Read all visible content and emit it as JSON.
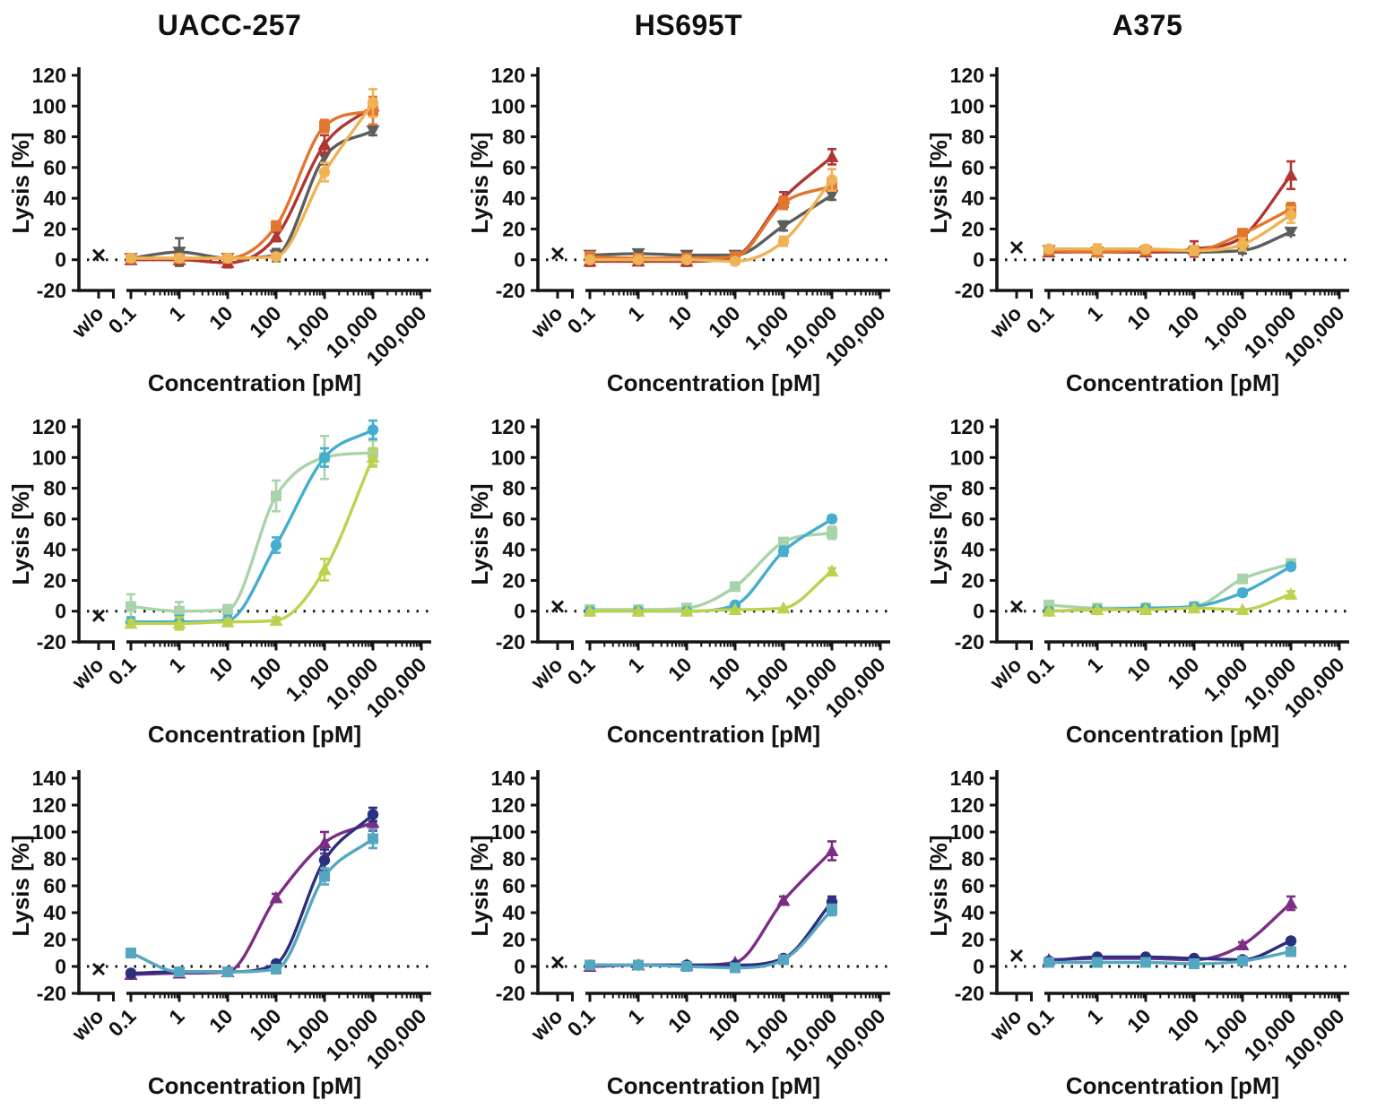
{
  "titles": [
    "UACC-257",
    "HS695T",
    "A375"
  ],
  "axis": {
    "ylabel": "Lysis [%]",
    "xlabel": "Concentration [pM]",
    "scale": "log",
    "wo_label": "w/o",
    "x_values": [
      0.1,
      1,
      10,
      100,
      1000,
      10000
    ],
    "x_tick_labels": [
      "0.1",
      "1",
      "10",
      "100",
      "1,000",
      "10,000",
      "100,000"
    ],
    "zero_line": "dotted"
  },
  "colors": {
    "orange": "#E1762F",
    "dark_red": "#B13632",
    "yellow": "#EFB254",
    "gray": "#5B5E5A",
    "light_green": "#A9D3A8",
    "blue": "#45ADCE",
    "lime": "#BCD24F",
    "purple": "#7C2E85",
    "navy": "#2A2F7E",
    "teal": "#55A7BF",
    "axis": "#151515"
  },
  "chart_data": [
    {
      "id": "row1-uacc257",
      "type": "line",
      "cell_line": "UACC-257",
      "ylim": [
        -20,
        120
      ],
      "ytick_step": 20,
      "wo_marker_y": 3,
      "series": [
        {
          "name": "gray-triangle-down",
          "marker": "triangle-down",
          "color": "#5B5E5A",
          "values": [
            1,
            5,
            1,
            3,
            67,
            84
          ],
          "errors": [
            2,
            9,
            2,
            4,
            5,
            3
          ]
        },
        {
          "name": "dark-red-triangle-up",
          "marker": "triangle-up",
          "color": "#B13632",
          "values": [
            0,
            0,
            -2,
            15,
            75,
            100
          ],
          "errors": [
            2,
            3,
            3,
            3,
            6,
            4
          ]
        },
        {
          "name": "orange-square",
          "marker": "square",
          "color": "#E1762F",
          "values": [
            1,
            1,
            1,
            22,
            87,
            97
          ],
          "errors": [
            2,
            2,
            2,
            3,
            4,
            9
          ]
        },
        {
          "name": "yellow-circle",
          "marker": "circle",
          "color": "#EFB254",
          "values": [
            1,
            1,
            1,
            2,
            57,
            102
          ],
          "errors": [
            2,
            2,
            2,
            2,
            6,
            9
          ]
        }
      ]
    },
    {
      "id": "row1-hs695t",
      "type": "line",
      "cell_line": "HS695T",
      "ylim": [
        -20,
        120
      ],
      "ytick_step": 20,
      "wo_marker_y": 4,
      "series": [
        {
          "name": "gray-triangle-down",
          "marker": "triangle-down",
          "color": "#5B5E5A",
          "values": [
            3,
            4,
            3,
            3,
            22,
            42
          ],
          "errors": [
            2,
            2,
            2,
            2,
            3,
            3
          ]
        },
        {
          "name": "dark-red-triangle-up",
          "marker": "triangle-up",
          "color": "#B13632",
          "values": [
            -1,
            -1,
            -1,
            2,
            40,
            67
          ],
          "errors": [
            3,
            2,
            3,
            2,
            4,
            5
          ]
        },
        {
          "name": "orange-square",
          "marker": "square",
          "color": "#E1762F",
          "values": [
            2,
            1,
            1,
            2,
            37,
            48
          ],
          "errors": [
            3,
            2,
            3,
            2,
            4,
            3
          ]
        },
        {
          "name": "yellow-circle",
          "marker": "circle",
          "color": "#EFB254",
          "values": [
            0,
            0,
            0,
            -1,
            12,
            52
          ],
          "errors": [
            2,
            2,
            2,
            2,
            3,
            7
          ]
        }
      ]
    },
    {
      "id": "row1-a375",
      "type": "line",
      "cell_line": "A375",
      "ylim": [
        -20,
        120
      ],
      "ytick_step": 20,
      "wo_marker_y": 8,
      "series": [
        {
          "name": "gray-triangle-down",
          "marker": "triangle-down",
          "color": "#5B5E5A",
          "values": [
            6,
            5,
            5,
            5,
            6,
            18
          ],
          "errors": [
            2,
            2,
            2,
            2,
            2,
            2
          ]
        },
        {
          "name": "dark-red-triangle-up",
          "marker": "triangle-up",
          "color": "#B13632",
          "values": [
            5,
            5,
            5,
            7,
            15,
            55
          ],
          "errors": [
            2,
            2,
            2,
            5,
            3,
            9
          ]
        },
        {
          "name": "orange-square",
          "marker": "square",
          "color": "#E1762F",
          "values": [
            6,
            5,
            6,
            6,
            17,
            33
          ],
          "errors": [
            2,
            2,
            2,
            2,
            3,
            4
          ]
        },
        {
          "name": "yellow-circle",
          "marker": "circle",
          "color": "#EFB254",
          "values": [
            7,
            7,
            7,
            6,
            10,
            29
          ],
          "errors": [
            2,
            3,
            2,
            3,
            4,
            5
          ]
        }
      ]
    },
    {
      "id": "row2-uacc257",
      "type": "line",
      "cell_line": "UACC-257",
      "ylim": [
        -20,
        120
      ],
      "ytick_step": 20,
      "wo_marker_y": -3,
      "series": [
        {
          "name": "light-green-square",
          "marker": "square",
          "color": "#A9D3A8",
          "values": [
            3,
            0,
            1,
            75,
            100,
            103
          ],
          "errors": [
            8,
            6,
            3,
            10,
            14,
            8
          ]
        },
        {
          "name": "blue-circle",
          "marker": "circle",
          "color": "#45ADCE",
          "values": [
            -7,
            -7,
            -6,
            43,
            100,
            118
          ],
          "errors": [
            3,
            4,
            3,
            5,
            6,
            6
          ]
        },
        {
          "name": "lime-triangle-up",
          "marker": "triangle-up",
          "color": "#BCD24F",
          "values": [
            -8,
            -8,
            -7,
            -6,
            27,
            100
          ],
          "errors": [
            2,
            4,
            2,
            2,
            7,
            6
          ]
        }
      ]
    },
    {
      "id": "row2-hs695t",
      "type": "line",
      "cell_line": "HS695T",
      "ylim": [
        -20,
        120
      ],
      "ytick_step": 20,
      "wo_marker_y": 3,
      "series": [
        {
          "name": "light-green-square",
          "marker": "square",
          "color": "#A9D3A8",
          "values": [
            1,
            1,
            2,
            16,
            45,
            51
          ],
          "errors": [
            2,
            1,
            1,
            2,
            2,
            4
          ]
        },
        {
          "name": "blue-circle",
          "marker": "circle",
          "color": "#45ADCE",
          "values": [
            0,
            0,
            0,
            4,
            39,
            60
          ],
          "errors": [
            1,
            1,
            1,
            1,
            3,
            2
          ]
        },
        {
          "name": "lime-triangle-up",
          "marker": "triangle-up",
          "color": "#BCD24F",
          "values": [
            0,
            0,
            0,
            1,
            2,
            26
          ],
          "errors": [
            1,
            1,
            1,
            1,
            1,
            2
          ]
        }
      ]
    },
    {
      "id": "row2-a375",
      "type": "line",
      "cell_line": "A375",
      "ylim": [
        -20,
        120
      ],
      "ytick_step": 20,
      "wo_marker_y": 3,
      "series": [
        {
          "name": "light-green-square",
          "marker": "square",
          "color": "#A9D3A8",
          "values": [
            4,
            2,
            2,
            3,
            21,
            31
          ],
          "errors": [
            2,
            1,
            1,
            2,
            2,
            2
          ]
        },
        {
          "name": "blue-circle",
          "marker": "circle",
          "color": "#45ADCE",
          "values": [
            0,
            1,
            2,
            3,
            12,
            29
          ],
          "errors": [
            1,
            1,
            1,
            1,
            2,
            2
          ]
        },
        {
          "name": "lime-triangle-up",
          "marker": "triangle-up",
          "color": "#BCD24F",
          "values": [
            0,
            1,
            1,
            2,
            1,
            11
          ],
          "errors": [
            1,
            1,
            1,
            1,
            1,
            2
          ]
        }
      ]
    },
    {
      "id": "row3-uacc257",
      "type": "line",
      "cell_line": "UACC-257",
      "ylim": [
        -20,
        140
      ],
      "ytick_step": 20,
      "wo_marker_y": -2,
      "series": [
        {
          "name": "purple-triangle-up",
          "marker": "triangle-up",
          "color": "#7C2E85",
          "values": [
            -6,
            -5,
            -4,
            51,
            92,
            107
          ],
          "errors": [
            2,
            2,
            2,
            3,
            8,
            6
          ]
        },
        {
          "name": "navy-circle",
          "marker": "circle",
          "color": "#2A2F7E",
          "values": [
            -5,
            -4,
            -4,
            2,
            79,
            113
          ],
          "errors": [
            2,
            2,
            2,
            2,
            8,
            5
          ]
        },
        {
          "name": "teal-square",
          "marker": "square",
          "color": "#55A7BF",
          "values": [
            10,
            -4,
            -4,
            -2,
            67,
            95
          ],
          "errors": [
            3,
            2,
            2,
            3,
            6,
            7
          ]
        }
      ]
    },
    {
      "id": "row3-hs695t",
      "type": "line",
      "cell_line": "HS695T",
      "ylim": [
        -20,
        140
      ],
      "ytick_step": 20,
      "wo_marker_y": 3,
      "series": [
        {
          "name": "purple-triangle-up",
          "marker": "triangle-up",
          "color": "#7C2E85",
          "values": [
            0,
            1,
            1,
            3,
            49,
            86
          ],
          "errors": [
            1,
            1,
            1,
            1,
            3,
            7
          ]
        },
        {
          "name": "navy-circle",
          "marker": "circle",
          "color": "#2A2F7E",
          "values": [
            1,
            1,
            1,
            1,
            6,
            48
          ],
          "errors": [
            1,
            1,
            1,
            1,
            2,
            4
          ]
        },
        {
          "name": "teal-square",
          "marker": "square",
          "color": "#55A7BF",
          "values": [
            1,
            1,
            0,
            -1,
            5,
            42
          ],
          "errors": [
            1,
            1,
            1,
            1,
            2,
            4
          ]
        }
      ]
    },
    {
      "id": "row3-a375",
      "type": "line",
      "cell_line": "A375",
      "ylim": [
        -20,
        140
      ],
      "ytick_step": 20,
      "wo_marker_y": 8,
      "series": [
        {
          "name": "purple-triangle-up",
          "marker": "triangle-up",
          "color": "#7C2E85",
          "values": [
            5,
            6,
            6,
            5,
            16,
            47
          ],
          "errors": [
            1,
            1,
            1,
            1,
            2,
            5
          ]
        },
        {
          "name": "navy-circle",
          "marker": "circle",
          "color": "#2A2F7E",
          "values": [
            4,
            7,
            7,
            6,
            5,
            19
          ],
          "errors": [
            1,
            1,
            1,
            1,
            1,
            2
          ]
        },
        {
          "name": "teal-square",
          "marker": "square",
          "color": "#55A7BF",
          "values": [
            3,
            3,
            3,
            2,
            4,
            11
          ],
          "errors": [
            1,
            1,
            1,
            1,
            1,
            2
          ]
        }
      ]
    }
  ]
}
